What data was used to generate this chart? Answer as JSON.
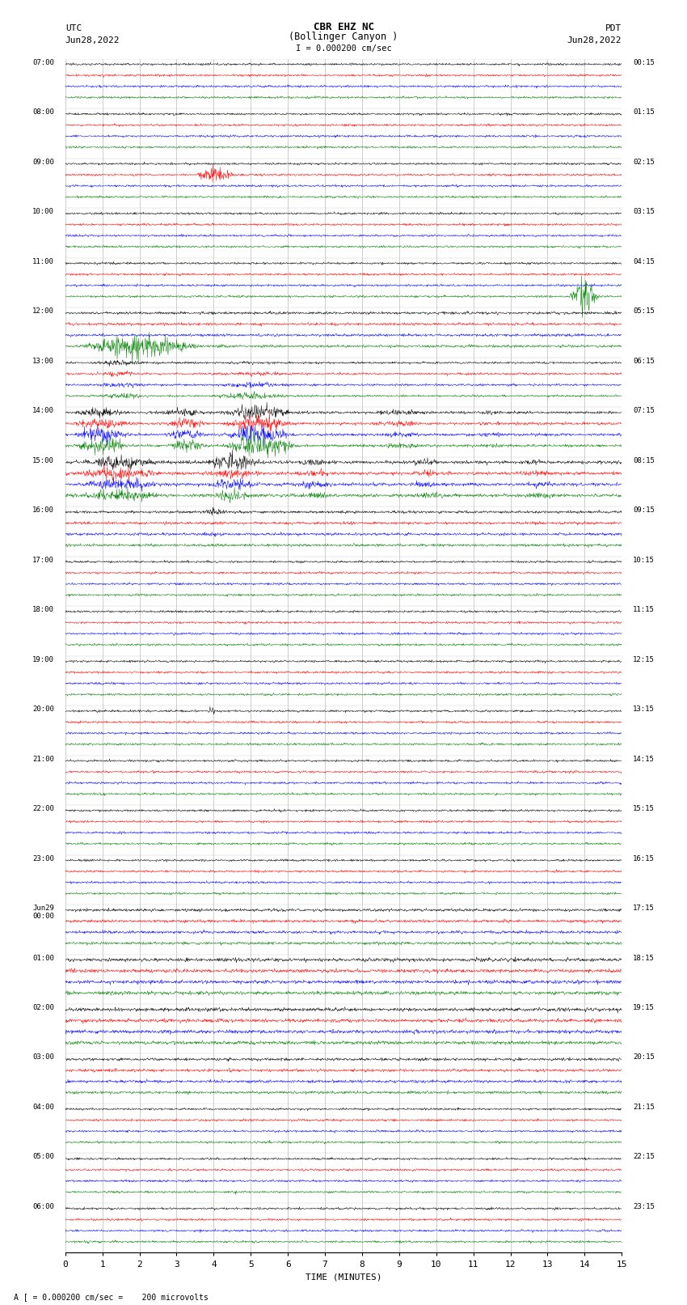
{
  "title_line1": "CBR EHZ NC",
  "title_line2": "(Bollinger Canyon )",
  "scale_label": "I = 0.000200 cm/sec",
  "left_header": "UTC",
  "left_date": "Jun28,2022",
  "right_header": "PDT",
  "right_date": "Jun28,2022",
  "xlabel": "TIME (MINUTES)",
  "footnote": "A [ = 0.000200 cm/sec =    200 microvolts",
  "left_times": [
    "07:00",
    "08:00",
    "09:00",
    "10:00",
    "11:00",
    "12:00",
    "13:00",
    "14:00",
    "15:00",
    "16:00",
    "17:00",
    "18:00",
    "19:00",
    "20:00",
    "21:00",
    "22:00",
    "23:00",
    "Jun29\n00:00",
    "01:00",
    "02:00",
    "03:00",
    "04:00",
    "05:00",
    "06:00"
  ],
  "right_times": [
    "00:15",
    "01:15",
    "02:15",
    "03:15",
    "04:15",
    "05:15",
    "06:15",
    "07:15",
    "08:15",
    "09:15",
    "10:15",
    "11:15",
    "12:15",
    "13:15",
    "14:15",
    "15:15",
    "16:15",
    "17:15",
    "18:15",
    "19:15",
    "20:15",
    "21:15",
    "22:15",
    "23:15"
  ],
  "colors": [
    "black",
    "red",
    "blue",
    "green"
  ],
  "bg_color": "white",
  "n_rows": 24,
  "n_traces_per_row": 4,
  "minutes": 15
}
